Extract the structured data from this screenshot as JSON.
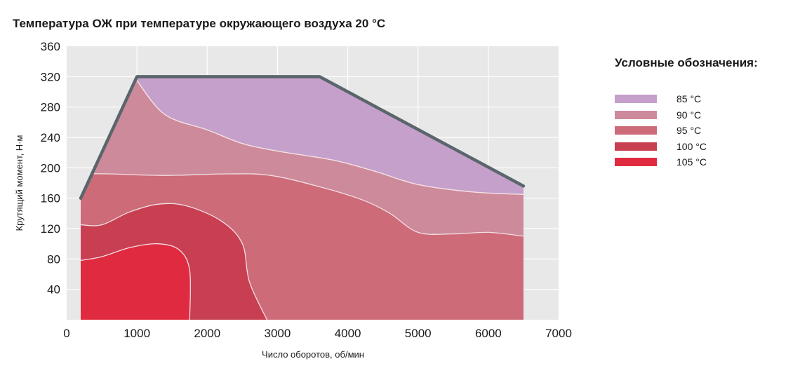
{
  "title": "Температура ОЖ при температуре окружающего воздуха 20 °C",
  "legend_title": "Условные обозначения:",
  "chart_data": {
    "type": "area",
    "title": "Температура ОЖ при температуре окружающего воздуха 20 °C",
    "xlabel": "Число оборотов, об/мин",
    "ylabel": "Крутящий момент, Н·м",
    "xlim": [
      0,
      7000
    ],
    "ylim": [
      0,
      360
    ],
    "xticks": [
      0,
      1000,
      2000,
      3000,
      4000,
      5000,
      6000,
      7000
    ],
    "yticks": [
      40,
      80,
      120,
      160,
      200,
      240,
      280,
      320,
      360
    ],
    "grid": true,
    "legend_position": "right",
    "torque_limit": {
      "x": [
        200,
        1000,
        3500,
        3600,
        6500
      ],
      "y": [
        160,
        320,
        320,
        320,
        176
      ],
      "color": "#5a666b"
    },
    "zones": [
      {
        "name": "85 °C",
        "color": "#c4a0cb",
        "upper": [
          [
            1000,
            320
          ],
          [
            3550,
            320
          ],
          [
            6500,
            176
          ]
        ],
        "lower": [
          [
            1000,
            315
          ],
          [
            1400,
            270
          ],
          [
            2000,
            250
          ],
          [
            2500,
            232
          ],
          [
            3000,
            222
          ],
          [
            3800,
            210
          ],
          [
            4400,
            195
          ],
          [
            5000,
            178
          ],
          [
            5800,
            168
          ],
          [
            6500,
            165
          ]
        ]
      },
      {
        "name": "90 °C",
        "color": "#cd8a9a",
        "upper": [
          [
            200,
            160
          ],
          [
            1000,
            320
          ],
          [
            1000,
            315
          ],
          [
            1400,
            270
          ],
          [
            2000,
            250
          ],
          [
            2500,
            232
          ],
          [
            3000,
            222
          ],
          [
            3800,
            210
          ],
          [
            4400,
            195
          ],
          [
            5000,
            178
          ],
          [
            5800,
            168
          ],
          [
            6500,
            165
          ]
        ],
        "lower": [
          [
            400,
            200
          ],
          [
            1000,
            198
          ],
          [
            1600,
            197
          ],
          [
            2500,
            200
          ],
          [
            3000,
            195
          ],
          [
            3600,
            180
          ],
          [
            4200,
            160
          ],
          [
            4600,
            140
          ],
          [
            5000,
            115
          ],
          [
            5500,
            113
          ],
          [
            6000,
            115
          ],
          [
            6500,
            110
          ]
        ]
      },
      {
        "name": "95 °C",
        "color": "#cd6b79",
        "upper": [
          [
            200,
            192
          ],
          [
            600,
            192
          ],
          [
            1400,
            190
          ],
          [
            2300,
            192
          ],
          [
            2900,
            190
          ],
          [
            3600,
            175
          ],
          [
            4200,
            158
          ],
          [
            4600,
            140
          ],
          [
            5000,
            115
          ],
          [
            5500,
            113
          ],
          [
            6000,
            115
          ],
          [
            6500,
            110
          ]
        ],
        "lower": [
          [
            200,
            125
          ],
          [
            500,
            125
          ],
          [
            900,
            142
          ],
          [
            1300,
            152
          ],
          [
            1700,
            150
          ],
          [
            2200,
            130
          ],
          [
            2500,
            100
          ],
          [
            2600,
            50
          ],
          [
            2850,
            0
          ]
        ]
      },
      {
        "name": "100 °C",
        "color": "#c83f52",
        "upper": [
          [
            200,
            125
          ],
          [
            500,
            125
          ],
          [
            900,
            142
          ],
          [
            1300,
            152
          ],
          [
            1700,
            150
          ],
          [
            2200,
            130
          ],
          [
            2500,
            100
          ],
          [
            2600,
            50
          ],
          [
            2850,
            0
          ]
        ],
        "lower": [
          [
            200,
            78
          ],
          [
            500,
            83
          ],
          [
            900,
            95
          ],
          [
            1300,
            100
          ],
          [
            1600,
            92
          ],
          [
            1750,
            65
          ],
          [
            1750,
            0
          ]
        ]
      },
      {
        "name": "105 °C",
        "color": "#e02a40",
        "upper": [
          [
            200,
            78
          ],
          [
            500,
            83
          ],
          [
            900,
            95
          ],
          [
            1300,
            100
          ],
          [
            1600,
            92
          ],
          [
            1750,
            65
          ],
          [
            1750,
            0
          ]
        ],
        "lower": [
          [
            200,
            0
          ],
          [
            1750,
            0
          ]
        ]
      }
    ]
  },
  "colors": {
    "plot_background": "#e8e8e9",
    "grid": "#ffffff",
    "contour": "#f4dfe3",
    "outline": "#5a666b"
  }
}
